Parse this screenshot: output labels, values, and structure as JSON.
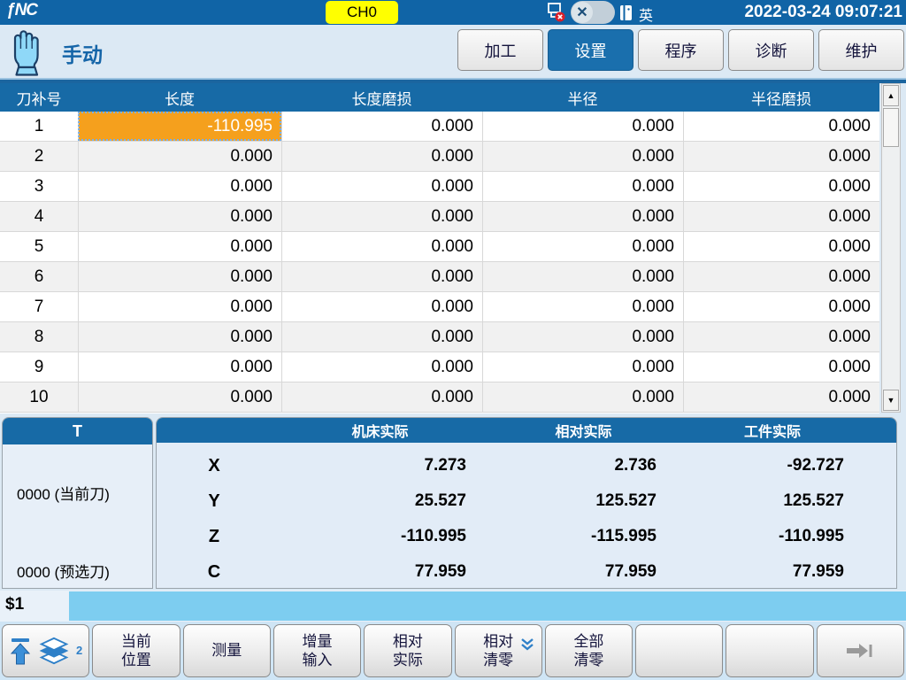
{
  "topbar": {
    "channel": "CH0",
    "language": "英",
    "datetime": "2022-03-24 09:07:21"
  },
  "nav": {
    "mode_label": "手动",
    "tabs": [
      {
        "label": "加工",
        "active": false
      },
      {
        "label": "设置",
        "active": true
      },
      {
        "label": "程序",
        "active": false
      },
      {
        "label": "诊断",
        "active": false
      },
      {
        "label": "维护",
        "active": false
      }
    ]
  },
  "offset_table": {
    "columns": [
      "刀补号",
      "长度",
      "长度磨损",
      "半径",
      "半径磨损"
    ],
    "selected_cell": {
      "row": 0,
      "col": 1
    },
    "rows": [
      [
        "1",
        "-110.995",
        "0.000",
        "0.000",
        "0.000"
      ],
      [
        "2",
        "0.000",
        "0.000",
        "0.000",
        "0.000"
      ],
      [
        "3",
        "0.000",
        "0.000",
        "0.000",
        "0.000"
      ],
      [
        "4",
        "0.000",
        "0.000",
        "0.000",
        "0.000"
      ],
      [
        "5",
        "0.000",
        "0.000",
        "0.000",
        "0.000"
      ],
      [
        "6",
        "0.000",
        "0.000",
        "0.000",
        "0.000"
      ],
      [
        "7",
        "0.000",
        "0.000",
        "0.000",
        "0.000"
      ],
      [
        "8",
        "0.000",
        "0.000",
        "0.000",
        "0.000"
      ],
      [
        "9",
        "0.000",
        "0.000",
        "0.000",
        "0.000"
      ],
      [
        "10",
        "0.000",
        "0.000",
        "0.000",
        "0.000"
      ]
    ]
  },
  "tool_panel": {
    "title": "T",
    "current": "0000 (当前刀)",
    "preselected": "0000 (预选刀)"
  },
  "position_panel": {
    "columns": [
      "机床实际",
      "相对实际",
      "工件实际"
    ],
    "axes": [
      {
        "name": "X",
        "machine": "7.273",
        "relative": "2.736",
        "work": "-92.727"
      },
      {
        "name": "Y",
        "machine": "25.527",
        "relative": "125.527",
        "work": "125.527"
      },
      {
        "name": "Z",
        "machine": "-110.995",
        "relative": "-115.995",
        "work": "-110.995"
      },
      {
        "name": "C",
        "machine": "77.959",
        "relative": "77.959",
        "work": "77.959"
      }
    ]
  },
  "channel_bar": {
    "label": "$1"
  },
  "softkeys": {
    "page_indicator": "2",
    "buttons": [
      {
        "type": "icons",
        "name": "softkey-nav-icons"
      },
      {
        "type": "label",
        "name": "softkey-current-position",
        "label": "当前\n位置"
      },
      {
        "type": "label",
        "name": "softkey-measure",
        "label": "测量"
      },
      {
        "type": "label",
        "name": "softkey-incremental-input",
        "label": "增量\n输入"
      },
      {
        "type": "label",
        "name": "softkey-relative-actual",
        "label": "相对\n实际"
      },
      {
        "type": "label",
        "name": "softkey-relative-clear",
        "label": "相对\n清零",
        "icon": "chevron-down"
      },
      {
        "type": "label",
        "name": "softkey-clear-all",
        "label": "全部\n清零"
      },
      {
        "type": "label",
        "name": "softkey-empty-1",
        "label": ""
      },
      {
        "type": "label",
        "name": "softkey-empty-2",
        "label": ""
      },
      {
        "type": "next",
        "name": "softkey-next-menu"
      }
    ]
  },
  "colors": {
    "topbar_blue": "#1064a6",
    "header_blue": "#176aa6",
    "tab_active": "#1a6fad",
    "selected_cell_orange": "#f5a01d",
    "channel_bar_blue": "#7dcdf0",
    "channel_badge_yellow": "#ffff00"
  }
}
